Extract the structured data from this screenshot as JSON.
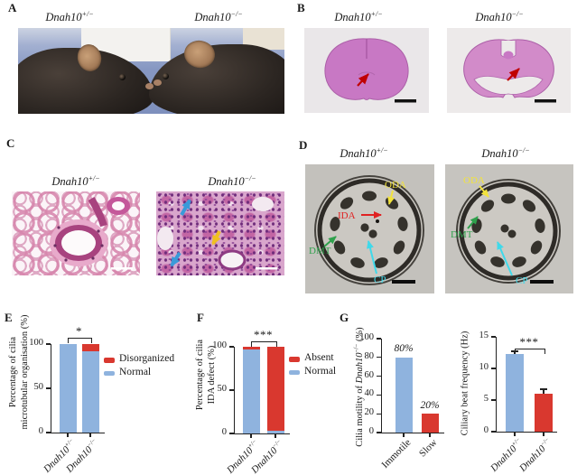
{
  "colors": {
    "bar_blue": "#8FB3DE",
    "bar_red": "#D9382F",
    "annot_yellow": "#F2E33C",
    "annot_red": "#E02222",
    "annot_green": "#2FA14C",
    "annot_cyan": "#3FD9EA",
    "arrow_red": "#C00000",
    "arrow_blue": "#3A9AD9",
    "arrow_yellow": "#F0C020",
    "he_stain_pink": "#C878C4"
  },
  "genotypes": {
    "het": {
      "base": "Dnah10",
      "sup": "+/−"
    },
    "ko": {
      "base": "Dnah10",
      "sup": "−/−"
    }
  },
  "panels": {
    "A": {
      "label": "A"
    },
    "B": {
      "label": "B"
    },
    "C": {
      "label": "C"
    },
    "D": {
      "label": "D",
      "tem1": {
        "annotations": [
          {
            "text": "ODA"
          },
          {
            "text": "IDA"
          },
          {
            "text": "DMT"
          },
          {
            "text": "CP"
          }
        ]
      },
      "tem2": {
        "annotations": [
          {
            "text": "ODA"
          },
          {
            "text": "DMT"
          },
          {
            "text": "CP"
          }
        ]
      }
    },
    "E": {
      "label": "E"
    },
    "F": {
      "label": "F"
    },
    "G": {
      "label": "G"
    }
  },
  "chart_data": [
    {
      "id": "E",
      "panel": "E",
      "type": "bar",
      "subtype": "stacked",
      "categories": [
        {
          "base": "Dnah10",
          "sup": "+/−"
        },
        {
          "base": "Dnah10",
          "sup": "−/−"
        }
      ],
      "series": [
        {
          "name": "Normal",
          "color_key": "bar_blue",
          "values": [
            100,
            92
          ]
        },
        {
          "name": "Disorganized",
          "color_key": "bar_red",
          "values": [
            0,
            8
          ]
        }
      ],
      "legend": [
        {
          "label": "Disorganized",
          "color_key": "bar_red"
        },
        {
          "label": "Normal",
          "color_key": "bar_blue"
        }
      ],
      "legend_position": "right",
      "ylabel": "Percentage of cilia microtubular organisation (%)",
      "ylabel_lines": [
        "Percentage of cilia",
        "microtubular organisation (%)"
      ],
      "ylim": [
        0,
        100
      ],
      "yticks": [
        0,
        50,
        100
      ],
      "grid": false,
      "significance": "*"
    },
    {
      "id": "F",
      "panel": "F",
      "type": "bar",
      "subtype": "stacked",
      "categories": [
        {
          "base": "Dnah10",
          "sup": "+/−"
        },
        {
          "base": "Dnah10",
          "sup": "−/−"
        }
      ],
      "series": [
        {
          "name": "Normal",
          "color_key": "bar_blue",
          "values": [
            97,
            3
          ]
        },
        {
          "name": "Absent",
          "color_key": "bar_red",
          "values": [
            3,
            97
          ]
        }
      ],
      "legend": [
        {
          "label": "Absent",
          "color_key": "bar_red"
        },
        {
          "label": "Normal",
          "color_key": "bar_blue"
        }
      ],
      "legend_position": "right",
      "ylabel": "Percentage of cilia IDA defect (%)",
      "ylabel_lines": [
        "Percentage of cilia",
        "IDA defect (%)"
      ],
      "ylim": [
        0,
        100
      ],
      "yticks": [
        0,
        50,
        100
      ],
      "grid": false,
      "significance": "***"
    },
    {
      "id": "G1",
      "panel": "G",
      "type": "bar",
      "subtype": "simple",
      "categories": [
        "Immotile",
        "Slow"
      ],
      "values": [
        80,
        20
      ],
      "bar_labels": [
        "80%",
        "20%"
      ],
      "bar_color_keys": [
        "bar_blue",
        "bar_red"
      ],
      "ylabel": "Cilia motility of Dnah10−/− (%)",
      "ylabel_parts": {
        "prefix": "Cilia motility of ",
        "gene": "Dnah10",
        "sup": "−/−",
        "suffix": " (%)"
      },
      "ylim": [
        0,
        100
      ],
      "yticks": [
        0,
        20,
        40,
        60,
        80,
        100
      ],
      "grid": false
    },
    {
      "id": "G2",
      "panel": "G",
      "type": "bar",
      "subtype": "simple",
      "categories": [
        {
          "base": "Dnah10",
          "sup": "+/−"
        },
        {
          "base": "Dnah10",
          "sup": "−/−"
        }
      ],
      "values": [
        12.3,
        6.0
      ],
      "errors": [
        0.4,
        0.7
      ],
      "bar_color_keys": [
        "bar_blue",
        "bar_red"
      ],
      "ylabel": "Ciliary beat frequency (Hz)",
      "ylim": [
        0,
        15
      ],
      "yticks": [
        0,
        5,
        10,
        15
      ],
      "grid": false,
      "significance": "***"
    }
  ]
}
